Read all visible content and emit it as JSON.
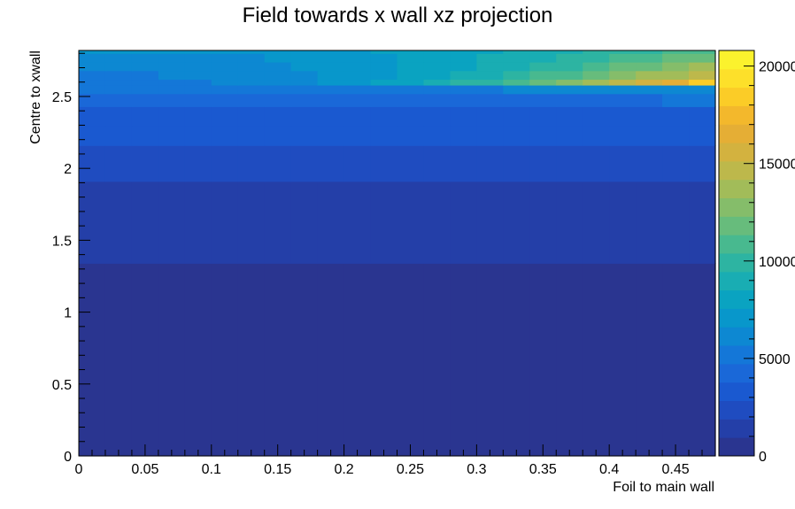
{
  "chart_data": {
    "type": "heatmap",
    "title": "Field towards x wall xz projection",
    "xlabel": "Foil to main wall",
    "ylabel": "Centre to xwall",
    "xlim": [
      0,
      0.48
    ],
    "ylim": [
      0,
      2.82
    ],
    "zlim": [
      0,
      20800
    ],
    "x_ticks": [
      "0",
      "0.05",
      "0.1",
      "0.15",
      "0.2",
      "0.25",
      "0.3",
      "0.35",
      "0.4",
      "0.45"
    ],
    "y_ticks": [
      "0",
      "0.5",
      "1",
      "1.5",
      "2",
      "2.5"
    ],
    "z_ticks": [
      "0",
      "5000",
      "10000",
      "15000",
      "20000"
    ],
    "grid": false,
    "colormap": [
      "#2a3590",
      "#243fa8",
      "#1f4cc0",
      "#1a59d0",
      "#1a68d8",
      "#1477d8",
      "#0d88d2",
      "#0897cb",
      "#0aa3c1",
      "#19adb3",
      "#2db4a2",
      "#48b98f",
      "#67bc7c",
      "#85bd6a",
      "#a2bc59",
      "#bdb84b",
      "#d3b23f",
      "#e5ae35",
      "#f3b82c",
      "#fbcc27",
      "#fde02a",
      "#fbf22d"
    ],
    "grid_x_bins": 24,
    "grid_y_bins": 45,
    "rows": [
      {
        "y_from": 0,
        "y_to": 1.34,
        "z_left": 250,
        "z_right": 400
      },
      {
        "y_from": 1.34,
        "y_to": 1.91,
        "z_left": 1300,
        "z_right": 1700
      },
      {
        "y_from": 1.91,
        "y_to": 2.16,
        "z_left": 2200,
        "z_right": 2500
      },
      {
        "y_from": 2.16,
        "y_to": 2.3,
        "z_left": 3200,
        "z_right": 2900
      },
      {
        "y_from": 2.3,
        "y_to": 2.43,
        "z_left": 3700,
        "z_right": 3500
      },
      {
        "y_from": 2.43,
        "y_to": 2.52,
        "z_left": 4300,
        "z_right": 4800
      },
      {
        "y_from": 2.52,
        "y_to": 2.58,
        "z_left": 5000,
        "z_right": 6500
      },
      {
        "y_from": 2.58,
        "y_to": 2.62,
        "z_left": 5300,
        "z_right": 18000
      },
      {
        "y_from": 2.62,
        "y_to": 2.68,
        "z_left": 5600,
        "z_right": 15000
      },
      {
        "y_from": 2.68,
        "y_to": 2.74,
        "z_left": 5900,
        "z_right": 13500
      },
      {
        "y_from": 2.74,
        "y_to": 2.8,
        "z_left": 6300,
        "z_right": 12000
      },
      {
        "y_from": 2.8,
        "y_to": 2.82,
        "z_left": 6800,
        "z_right": 11000
      }
    ]
  }
}
